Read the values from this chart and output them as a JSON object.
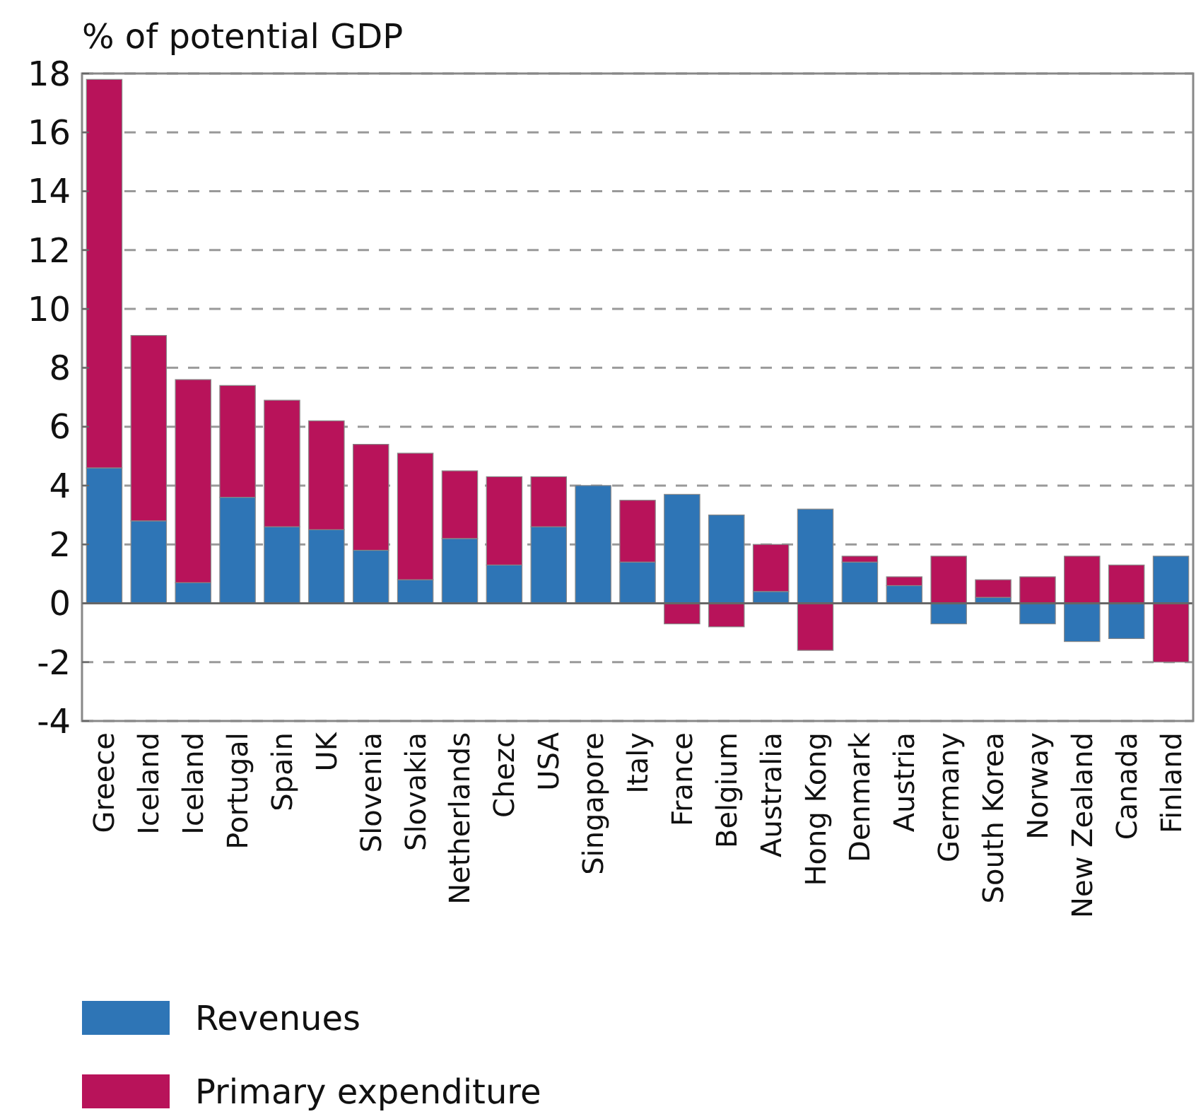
{
  "chart_data": {
    "type": "bar",
    "stacked": true,
    "ylabel": "% of potential GDP",
    "categories": [
      "Greece",
      "Iceland",
      "Iceland",
      "Portugal",
      "Spain",
      "UK",
      "Slovenia",
      "Slovakia",
      "Netherlands",
      "Chezc",
      "USA",
      "Singapore",
      "Italy",
      "France",
      "Belgium",
      "Australia",
      "Hong Kong",
      "Denmark",
      "Austria",
      "Germany",
      "South Korea",
      "Norway",
      "New Zealand",
      "Canada",
      "Finland"
    ],
    "series": [
      {
        "name": "Revenues",
        "color": "#2e75b6",
        "values": [
          4.6,
          2.8,
          0.7,
          3.6,
          2.6,
          2.5,
          1.8,
          0.8,
          2.2,
          1.3,
          2.6,
          4.0,
          1.4,
          3.7,
          3.0,
          0.4,
          3.2,
          1.4,
          0.6,
          -0.7,
          0.2,
          -0.7,
          -1.3,
          -1.2,
          1.6
        ]
      },
      {
        "name": "Primary expenditure",
        "color": "#b8135a",
        "values": [
          13.2,
          6.3,
          6.9,
          3.8,
          4.3,
          3.7,
          3.6,
          4.3,
          2.3,
          3.0,
          1.7,
          0,
          2.1,
          -0.7,
          -0.8,
          1.6,
          -1.6,
          0.2,
          0.3,
          1.6,
          0.6,
          0.9,
          1.6,
          1.3,
          -2.0
        ]
      }
    ],
    "ylim": [
      -4,
      18
    ],
    "yticks": [
      -4,
      -2,
      0,
      2,
      4,
      6,
      8,
      10,
      12,
      14,
      16,
      18
    ],
    "grid": "y",
    "legend": "bottom"
  }
}
